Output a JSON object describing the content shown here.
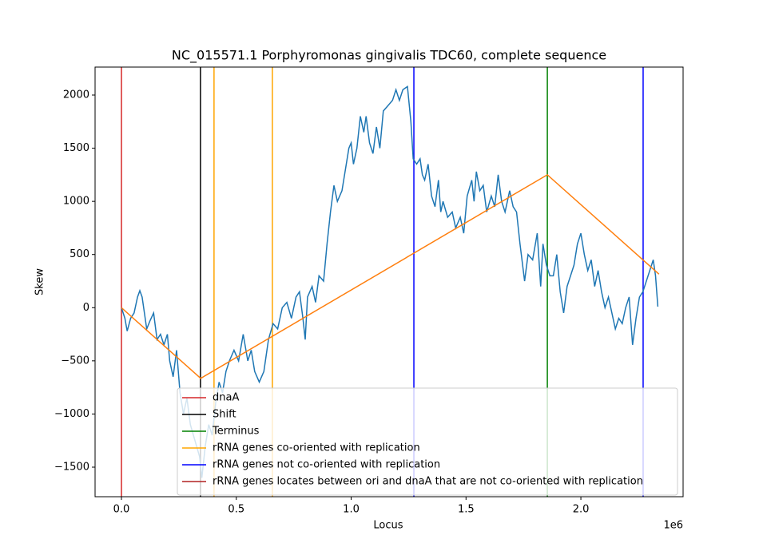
{
  "chart_data": {
    "type": "line",
    "title": "NC_015571.1 Porphyromonas gingivalis TDC60, complete sequence",
    "x_label": "Locus",
    "y_label": "Skew",
    "x_offset_label": "1e6",
    "xlim": [
      -114800,
      2445000
    ],
    "ylim": [
      -1778,
      2263
    ],
    "xticks": [
      {
        "value": 0,
        "label": "0.0"
      },
      {
        "value": 500000,
        "label": "0.5"
      },
      {
        "value": 1000000,
        "label": "1.0"
      },
      {
        "value": 1500000,
        "label": "1.5"
      },
      {
        "value": 2000000,
        "label": "2.0"
      }
    ],
    "yticks": [
      {
        "value": -1500,
        "label": "−1500"
      },
      {
        "value": -1000,
        "label": "−1000"
      },
      {
        "value": -500,
        "label": "−500"
      },
      0,
      500,
      1000,
      1500,
      2000
    ],
    "series": [
      {
        "color": "#1f77b4",
        "x": [
          0,
          15000,
          25000,
          40000,
          55000,
          70000,
          80000,
          90000,
          100000,
          110000,
          125000,
          140000,
          155000,
          170000,
          185000,
          200000,
          210000,
          225000,
          240000,
          255000,
          270000,
          285000,
          300000,
          320000,
          340000,
          350000,
          365000,
          380000,
          395000,
          410000,
          425000,
          440000,
          455000,
          470000,
          490000,
          510000,
          530000,
          550000,
          565000,
          580000,
          600000,
          620000,
          640000,
          660000,
          680000,
          700000,
          720000,
          740000,
          760000,
          775000,
          790000,
          800000,
          810000,
          830000,
          845000,
          860000,
          880000,
          895000,
          910000,
          925000,
          940000,
          960000,
          975000,
          990000,
          1000000,
          1010000,
          1025000,
          1040000,
          1055000,
          1065000,
          1080000,
          1095000,
          1110000,
          1125000,
          1140000,
          1160000,
          1180000,
          1195000,
          1210000,
          1225000,
          1245000,
          1260000,
          1270000,
          1285000,
          1300000,
          1310000,
          1320000,
          1335000,
          1350000,
          1365000,
          1380000,
          1390000,
          1400000,
          1420000,
          1440000,
          1455000,
          1475000,
          1490000,
          1505000,
          1525000,
          1535000,
          1545000,
          1560000,
          1575000,
          1590000,
          1610000,
          1625000,
          1640000,
          1655000,
          1670000,
          1690000,
          1705000,
          1720000,
          1735000,
          1755000,
          1770000,
          1790000,
          1810000,
          1825000,
          1835000,
          1850000,
          1865000,
          1880000,
          1895000,
          1910000,
          1925000,
          1940000,
          1955000,
          1970000,
          1985000,
          2000000,
          2015000,
          2030000,
          2045000,
          2060000,
          2075000,
          2090000,
          2105000,
          2120000,
          2135000,
          2150000,
          2165000,
          2180000,
          2195000,
          2210000,
          2225000,
          2240000,
          2255000,
          2270000,
          2285000,
          2300000,
          2315000,
          2325000,
          2335000
        ],
        "values": [
          0,
          -100,
          -220,
          -100,
          -50,
          100,
          160,
          100,
          -50,
          -200,
          -120,
          -50,
          -300,
          -250,
          -350,
          -250,
          -500,
          -650,
          -400,
          -800,
          -1000,
          -850,
          -1100,
          -1250,
          -1400,
          -1600,
          -1300,
          -1100,
          -1200,
          -900,
          -700,
          -800,
          -600,
          -500,
          -400,
          -500,
          -250,
          -500,
          -400,
          -600,
          -700,
          -600,
          -300,
          -150,
          -200,
          0,
          50,
          -100,
          100,
          150,
          -100,
          -300,
          100,
          200,
          50,
          300,
          250,
          600,
          900,
          1150,
          1000,
          1100,
          1300,
          1500,
          1550,
          1350,
          1500,
          1800,
          1650,
          1800,
          1550,
          1450,
          1700,
          1500,
          1850,
          1900,
          1950,
          2050,
          1950,
          2050,
          2080,
          1750,
          1400,
          1350,
          1400,
          1250,
          1200,
          1350,
          1050,
          950,
          1200,
          900,
          1000,
          850,
          900,
          750,
          850,
          700,
          1050,
          1200,
          1000,
          1280,
          1100,
          1150,
          900,
          1050,
          950,
          1250,
          1000,
          900,
          1100,
          950,
          900,
          600,
          250,
          500,
          450,
          700,
          200,
          600,
          400,
          300,
          300,
          500,
          150,
          -50,
          200,
          300,
          400,
          600,
          700,
          500,
          350,
          450,
          200,
          350,
          150,
          0,
          100,
          -50,
          -200,
          -100,
          -150,
          0,
          100,
          -350,
          -100,
          100,
          150,
          250,
          350,
          450,
          300,
          10
        ]
      },
      {
        "color": "#ff7f0e",
        "x": [
          0,
          345000,
          1854000,
          2340000
        ],
        "values": [
          0,
          -665,
          1250,
          315
        ]
      }
    ],
    "vlines": [
      {
        "name": "dnaA",
        "color": "#d62728",
        "x": [
          0
        ]
      },
      {
        "name": "Shift",
        "color": "#000000",
        "x": [
          344000
        ]
      },
      {
        "name": "Terminus",
        "color": "#008000",
        "x": [
          1854000
        ]
      },
      {
        "name": "rRNA genes co-oriented with replication",
        "color": "#ffa500",
        "x": [
          403000,
          657000
        ]
      },
      {
        "name": "rRNA genes not co-oriented with replication",
        "color": "#0000ff",
        "x": [
          1273000,
          2271000
        ]
      },
      {
        "name": "rRNA genes locates between ori and dnaA that are not co-oriented with replication",
        "color": "#b22222",
        "x": []
      }
    ]
  }
}
